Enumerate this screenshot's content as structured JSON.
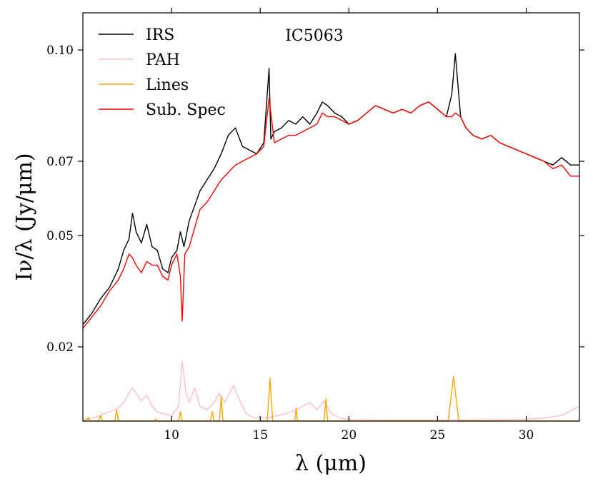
{
  "chart_data": {
    "type": "line",
    "title": "IC5063",
    "xlabel": "λ (μm)",
    "ylabel": "Iν/λ (Jy/μm)",
    "xlim": [
      5,
      33
    ],
    "ylim": [
      0,
      0.11
    ],
    "x_ticks": [
      10,
      15,
      20,
      25,
      30
    ],
    "x_tick_labels": [
      "10",
      "15",
      "20",
      "25",
      "30"
    ],
    "y_ticks": [
      0.02,
      0.05,
      0.07,
      0.1
    ],
    "y_tick_labels": [
      "0.02",
      "0.05",
      "0.07",
      "0.10"
    ],
    "legend_position": "top-left",
    "series": [
      {
        "name": "IRS",
        "color": "#000000",
        "x": [
          5.0,
          5.5,
          6.0,
          6.5,
          7.0,
          7.3,
          7.6,
          7.8,
          8.0,
          8.3,
          8.6,
          8.9,
          9.2,
          9.5,
          9.8,
          10.0,
          10.3,
          10.5,
          10.7,
          11.0,
          11.3,
          11.6,
          12.0,
          12.4,
          12.8,
          13.2,
          13.6,
          14.0,
          14.4,
          14.8,
          15.2,
          15.5,
          15.6,
          15.8,
          16.2,
          16.6,
          17.0,
          17.4,
          17.8,
          18.2,
          18.5,
          18.8,
          19.2,
          19.6,
          20.0,
          20.5,
          21.0,
          21.5,
          22.0,
          22.5,
          23.0,
          23.5,
          24.0,
          24.5,
          25.0,
          25.5,
          25.8,
          26.0,
          26.3,
          26.6,
          27.0,
          27.5,
          28.0,
          28.5,
          29.0,
          29.5,
          30.0,
          30.5,
          31.0,
          31.5,
          32.0,
          32.5,
          33.0
        ],
        "y": [
          0.026,
          0.029,
          0.033,
          0.036,
          0.041,
          0.046,
          0.049,
          0.056,
          0.051,
          0.048,
          0.053,
          0.047,
          0.046,
          0.041,
          0.04,
          0.044,
          0.046,
          0.051,
          0.047,
          0.054,
          0.058,
          0.062,
          0.065,
          0.068,
          0.072,
          0.077,
          0.079,
          0.074,
          0.073,
          0.072,
          0.075,
          0.095,
          0.076,
          0.078,
          0.079,
          0.081,
          0.08,
          0.082,
          0.08,
          0.083,
          0.086,
          0.085,
          0.083,
          0.082,
          0.08,
          0.081,
          0.083,
          0.085,
          0.084,
          0.083,
          0.084,
          0.083,
          0.085,
          0.086,
          0.084,
          0.082,
          0.088,
          0.099,
          0.082,
          0.079,
          0.077,
          0.076,
          0.077,
          0.075,
          0.074,
          0.073,
          0.072,
          0.071,
          0.07,
          0.069,
          0.071,
          0.069,
          0.069
        ]
      },
      {
        "name": "PAH",
        "color": "#ffc0cb",
        "x": [
          5.0,
          5.5,
          6.0,
          6.2,
          6.5,
          7.0,
          7.3,
          7.6,
          7.8,
          8.0,
          8.3,
          8.6,
          8.9,
          9.2,
          9.5,
          10.0,
          10.4,
          10.6,
          10.8,
          11.0,
          11.3,
          11.6,
          12.0,
          12.4,
          12.7,
          13.0,
          13.2,
          13.5,
          13.8,
          14.2,
          14.6,
          15.0,
          15.5,
          16.0,
          16.5,
          17.0,
          17.4,
          17.8,
          18.2,
          18.6,
          19.0,
          19.5,
          20.0,
          22.0,
          25.0,
          28.0,
          30.0,
          31.0,
          32.0,
          33.0
        ],
        "y": [
          0.0003,
          0.0008,
          0.0015,
          0.002,
          0.0025,
          0.0035,
          0.005,
          0.0075,
          0.009,
          0.0075,
          0.0055,
          0.007,
          0.004,
          0.0025,
          0.002,
          0.0015,
          0.004,
          0.016,
          0.008,
          0.005,
          0.009,
          0.004,
          0.003,
          0.005,
          0.0075,
          0.005,
          0.007,
          0.0095,
          0.006,
          0.002,
          0.001,
          0.0008,
          0.001,
          0.0015,
          0.002,
          0.003,
          0.004,
          0.005,
          0.003,
          0.0055,
          0.002,
          0.0008,
          0.0004,
          0.0002,
          0.0002,
          0.0003,
          0.0005,
          0.0008,
          0.0015,
          0.004
        ]
      },
      {
        "name": "Lines",
        "color": "#ffa500",
        "x": [
          5.0,
          5.2,
          5.3,
          5.4,
          5.9,
          6.0,
          6.1,
          6.8,
          6.9,
          7.0,
          9.0,
          9.1,
          9.2,
          10.4,
          10.5,
          10.6,
          12.2,
          12.3,
          12.4,
          12.7,
          12.8,
          12.9,
          15.4,
          15.55,
          15.7,
          16.95,
          17.03,
          17.1,
          18.6,
          18.71,
          18.8,
          25.6,
          25.9,
          26.2,
          33.0
        ],
        "y": [
          0.0,
          0.0,
          0.001,
          0.0,
          0.0,
          0.0015,
          0.0,
          0.0,
          0.003,
          0.0,
          0.0,
          0.0005,
          0.0,
          0.0,
          0.0025,
          0.0,
          0.0,
          0.0025,
          0.0,
          0.0,
          0.0065,
          0.0,
          0.0,
          0.0115,
          0.0,
          0.0,
          0.0035,
          0.0,
          0.0,
          0.006,
          0.0,
          0.0,
          0.012,
          0.0,
          0.0
        ]
      },
      {
        "name": "Sub. Spec",
        "color": "#ff0000",
        "x": [
          5.0,
          5.5,
          6.0,
          6.5,
          7.0,
          7.3,
          7.6,
          7.8,
          8.0,
          8.3,
          8.6,
          8.9,
          9.2,
          9.5,
          9.8,
          10.0,
          10.3,
          10.5,
          10.6,
          10.75,
          11.0,
          11.3,
          11.6,
          12.0,
          12.4,
          12.8,
          13.2,
          13.6,
          14.0,
          14.4,
          14.8,
          15.2,
          15.5,
          15.8,
          16.2,
          16.6,
          17.0,
          17.4,
          17.8,
          18.2,
          18.5,
          18.8,
          19.2,
          19.6,
          20.0,
          20.5,
          21.0,
          21.5,
          22.0,
          22.5,
          23.0,
          23.5,
          24.0,
          24.5,
          25.0,
          25.5,
          25.8,
          26.0,
          26.3,
          26.6,
          27.0,
          27.5,
          28.0,
          28.5,
          29.0,
          29.5,
          30.0,
          30.5,
          31.0,
          31.5,
          32.0,
          32.5,
          33.0
        ],
        "y": [
          0.025,
          0.028,
          0.031,
          0.035,
          0.038,
          0.041,
          0.045,
          0.044,
          0.042,
          0.04,
          0.043,
          0.042,
          0.042,
          0.039,
          0.038,
          0.042,
          0.045,
          0.039,
          0.027,
          0.045,
          0.047,
          0.052,
          0.057,
          0.059,
          0.062,
          0.065,
          0.067,
          0.069,
          0.07,
          0.071,
          0.072,
          0.074,
          0.087,
          0.075,
          0.076,
          0.077,
          0.077,
          0.078,
          0.079,
          0.08,
          0.083,
          0.082,
          0.082,
          0.081,
          0.08,
          0.081,
          0.083,
          0.085,
          0.084,
          0.083,
          0.084,
          0.083,
          0.085,
          0.086,
          0.084,
          0.082,
          0.082,
          0.083,
          0.082,
          0.079,
          0.077,
          0.076,
          0.077,
          0.075,
          0.074,
          0.073,
          0.072,
          0.071,
          0.07,
          0.068,
          0.069,
          0.066,
          0.066
        ]
      }
    ]
  }
}
